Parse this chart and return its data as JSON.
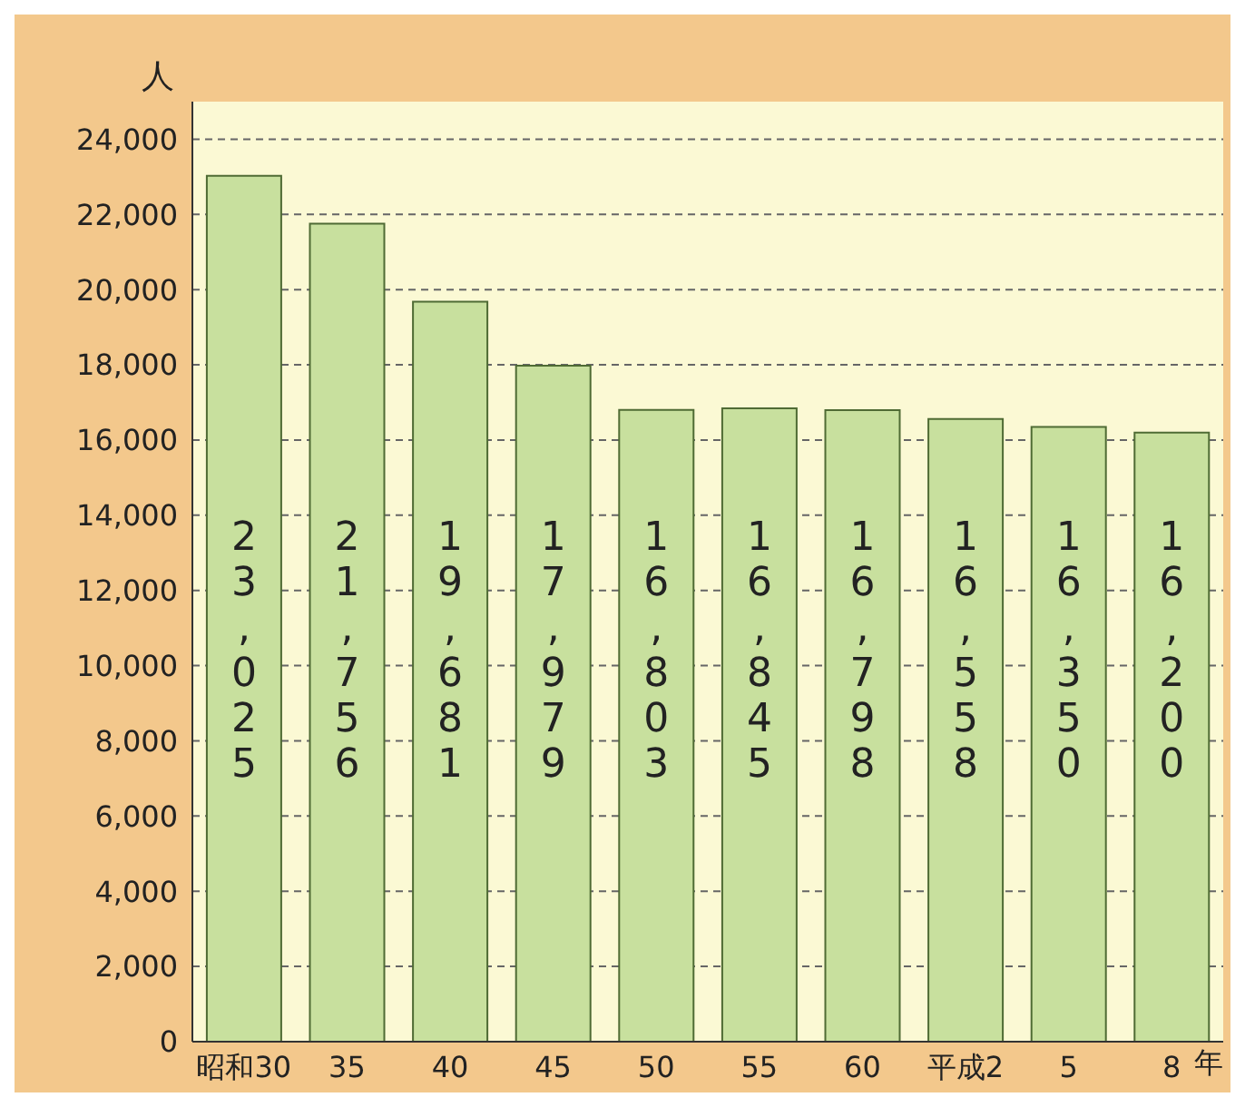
{
  "chart_data": {
    "type": "bar",
    "ylabel": "人",
    "xlabel": "年",
    "categories": [
      "昭和30",
      "35",
      "40",
      "45",
      "50",
      "55",
      "60",
      "平成2",
      "5",
      "8"
    ],
    "values": [
      23025,
      21756,
      19681,
      17979,
      16803,
      16845,
      16798,
      16558,
      16350,
      16200
    ],
    "color": "#c8e09e",
    "ylim": [
      0,
      25000
    ],
    "yticks": [
      0,
      {
        "value": 2000,
        "label": "2,000"
      },
      {
        "value": 4000,
        "label": "4,000"
      },
      {
        "value": 6000,
        "label": "6,000"
      },
      {
        "value": 8000,
        "label": "8,000"
      },
      {
        "value": 10000,
        "label": "10,000"
      },
      {
        "value": 12000,
        "label": "12,000"
      },
      {
        "value": 14000,
        "label": "14,000"
      },
      {
        "value": 16000,
        "label": "16,000"
      },
      {
        "value": 18000,
        "label": "18,000"
      },
      {
        "value": 20000,
        "label": "20,000"
      },
      {
        "value": 22000,
        "label": "22,000"
      },
      {
        "value": 24000,
        "label": "24,000"
      }
    ],
    "value_labels": [
      "23,025",
      "21,756",
      "19,681",
      "17,979",
      "16,803",
      "16,845",
      "16,798",
      "16,558",
      "16,350",
      "16,200"
    ],
    "grid": "y"
  }
}
